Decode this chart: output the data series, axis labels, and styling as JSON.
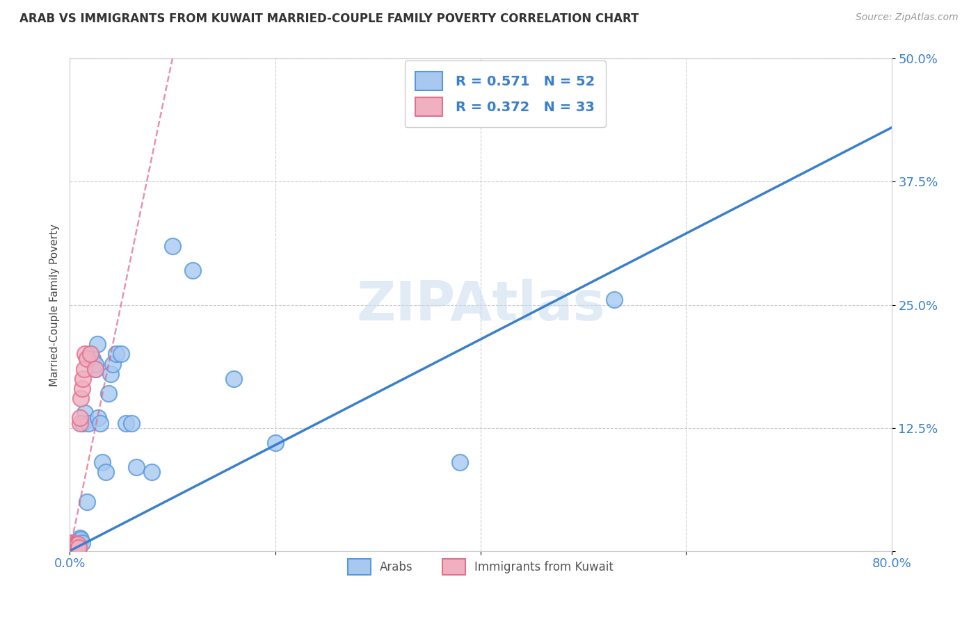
{
  "title": "ARAB VS IMMIGRANTS FROM KUWAIT MARRIED-COUPLE FAMILY POVERTY CORRELATION CHART",
  "source": "Source: ZipAtlas.com",
  "ylabel": "Married-Couple Family Poverty",
  "xlim": [
    0,
    0.8
  ],
  "ylim": [
    0,
    0.5
  ],
  "xticks": [
    0.0,
    0.2,
    0.4,
    0.6,
    0.8
  ],
  "yticks": [
    0.0,
    0.125,
    0.25,
    0.375,
    0.5
  ],
  "xticklabels": [
    "0.0%",
    "",
    "",
    "",
    "80.0%"
  ],
  "yticklabels": [
    "",
    "12.5%",
    "25.0%",
    "37.5%",
    "50.0%"
  ],
  "arab_R": 0.571,
  "arab_N": 52,
  "kuwait_R": 0.372,
  "kuwait_N": 33,
  "arab_color": "#a8c8f0",
  "arab_edge_color": "#5599dd",
  "arab_line_color": "#3a7fcc",
  "kuwait_color": "#f0b0c0",
  "kuwait_edge_color": "#e07090",
  "kuwait_line_color": "#dd6688",
  "legend_label_arab": "Arabs",
  "legend_label_kuwait": "Immigrants from Kuwait",
  "watermark": "ZIPAtlas",
  "arab_line_x0": 0.0,
  "arab_line_y0": 0.0,
  "arab_line_x1": 0.8,
  "arab_line_y1": 0.43,
  "kuwait_line_x0": 0.0,
  "kuwait_line_y0": 0.0,
  "kuwait_line_x1": 0.1,
  "kuwait_line_y1": 0.5,
  "arab_x": [
    0.001,
    0.001,
    0.002,
    0.002,
    0.002,
    0.003,
    0.003,
    0.003,
    0.004,
    0.004,
    0.005,
    0.005,
    0.006,
    0.006,
    0.007,
    0.007,
    0.008,
    0.008,
    0.009,
    0.009,
    0.01,
    0.01,
    0.011,
    0.012,
    0.013,
    0.015,
    0.017,
    0.018,
    0.02,
    0.022,
    0.025,
    0.025,
    0.027,
    0.028,
    0.03,
    0.032,
    0.035,
    0.038,
    0.04,
    0.042,
    0.045,
    0.05,
    0.055,
    0.06,
    0.065,
    0.08,
    0.1,
    0.12,
    0.16,
    0.2,
    0.38,
    0.53
  ],
  "arab_y": [
    0.002,
    0.005,
    0.002,
    0.005,
    0.008,
    0.003,
    0.005,
    0.007,
    0.004,
    0.007,
    0.003,
    0.008,
    0.004,
    0.008,
    0.003,
    0.006,
    0.004,
    0.007,
    0.003,
    0.006,
    0.01,
    0.013,
    0.012,
    0.008,
    0.13,
    0.14,
    0.05,
    0.13,
    0.2,
    0.195,
    0.185,
    0.19,
    0.21,
    0.135,
    0.13,
    0.09,
    0.08,
    0.16,
    0.18,
    0.19,
    0.2,
    0.2,
    0.13,
    0.13,
    0.085,
    0.08,
    0.31,
    0.285,
    0.175,
    0.11,
    0.09,
    0.255
  ],
  "kuwait_x": [
    0.0,
    0.0,
    0.0,
    0.001,
    0.001,
    0.001,
    0.001,
    0.002,
    0.002,
    0.002,
    0.003,
    0.003,
    0.003,
    0.004,
    0.004,
    0.005,
    0.005,
    0.006,
    0.007,
    0.007,
    0.008,
    0.008,
    0.009,
    0.01,
    0.01,
    0.011,
    0.012,
    0.013,
    0.014,
    0.015,
    0.017,
    0.02,
    0.025
  ],
  "kuwait_y": [
    0.002,
    0.004,
    0.006,
    0.002,
    0.004,
    0.006,
    0.008,
    0.003,
    0.005,
    0.007,
    0.003,
    0.006,
    0.008,
    0.004,
    0.007,
    0.003,
    0.006,
    0.004,
    0.003,
    0.006,
    0.004,
    0.007,
    0.003,
    0.13,
    0.135,
    0.155,
    0.165,
    0.175,
    0.185,
    0.2,
    0.195,
    0.2,
    0.185
  ]
}
